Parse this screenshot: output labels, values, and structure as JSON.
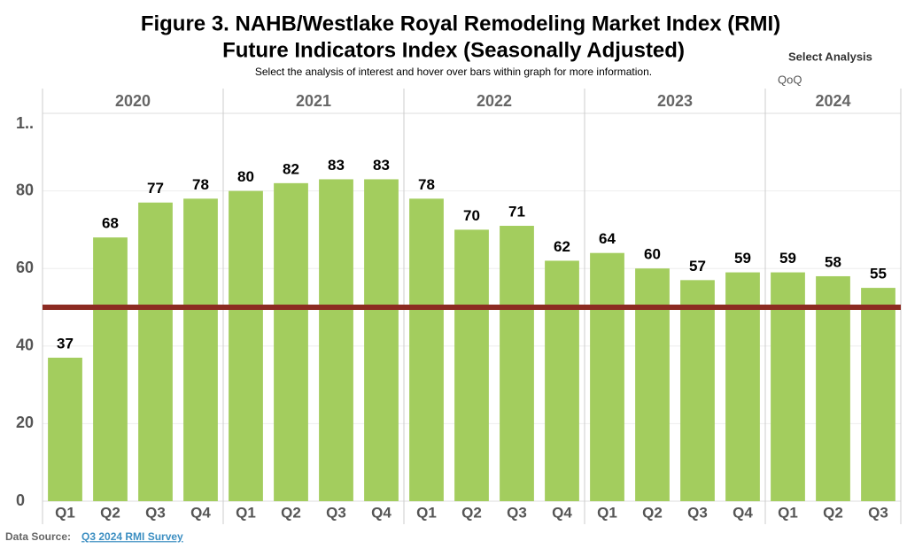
{
  "chart_data": {
    "type": "bar",
    "title": [
      "Figure 3. NAHB/Westlake Royal Remodeling Market Index (RMI)",
      "Future Indicators Index (Seasonally Adjusted)"
    ],
    "subtitle": "Select the analysis of interest and hover over bars within graph for more information.",
    "groups": [
      {
        "label": "2020",
        "categories": [
          "Q1",
          "Q2",
          "Q3",
          "Q4"
        ],
        "values": [
          37,
          68,
          77,
          78
        ]
      },
      {
        "label": "2021",
        "categories": [
          "Q1",
          "Q2",
          "Q3",
          "Q4"
        ],
        "values": [
          80,
          82,
          83,
          83
        ]
      },
      {
        "label": "2022",
        "categories": [
          "Q1",
          "Q2",
          "Q3",
          "Q4"
        ],
        "values": [
          78,
          70,
          71,
          62
        ]
      },
      {
        "label": "2023",
        "categories": [
          "Q1",
          "Q2",
          "Q3",
          "Q4"
        ],
        "values": [
          64,
          60,
          57,
          59
        ]
      },
      {
        "label": "2024",
        "categories": [
          "Q1",
          "Q2",
          "Q3"
        ],
        "values": [
          59,
          58,
          55
        ]
      }
    ],
    "color": "#a3cd5e",
    "reference_line": {
      "value": 50,
      "color": "#8c2b22"
    },
    "ylim": [
      0,
      100
    ],
    "yticks": [
      0,
      20,
      40,
      60,
      80,
      {
        "value": 100,
        "label": "1.."
      }
    ],
    "grid": true,
    "control": {
      "label": "Select Analysis",
      "value": "QoQ"
    },
    "source": {
      "label": "Data Source:",
      "link": "Q3 2024 RMI Survey"
    }
  }
}
